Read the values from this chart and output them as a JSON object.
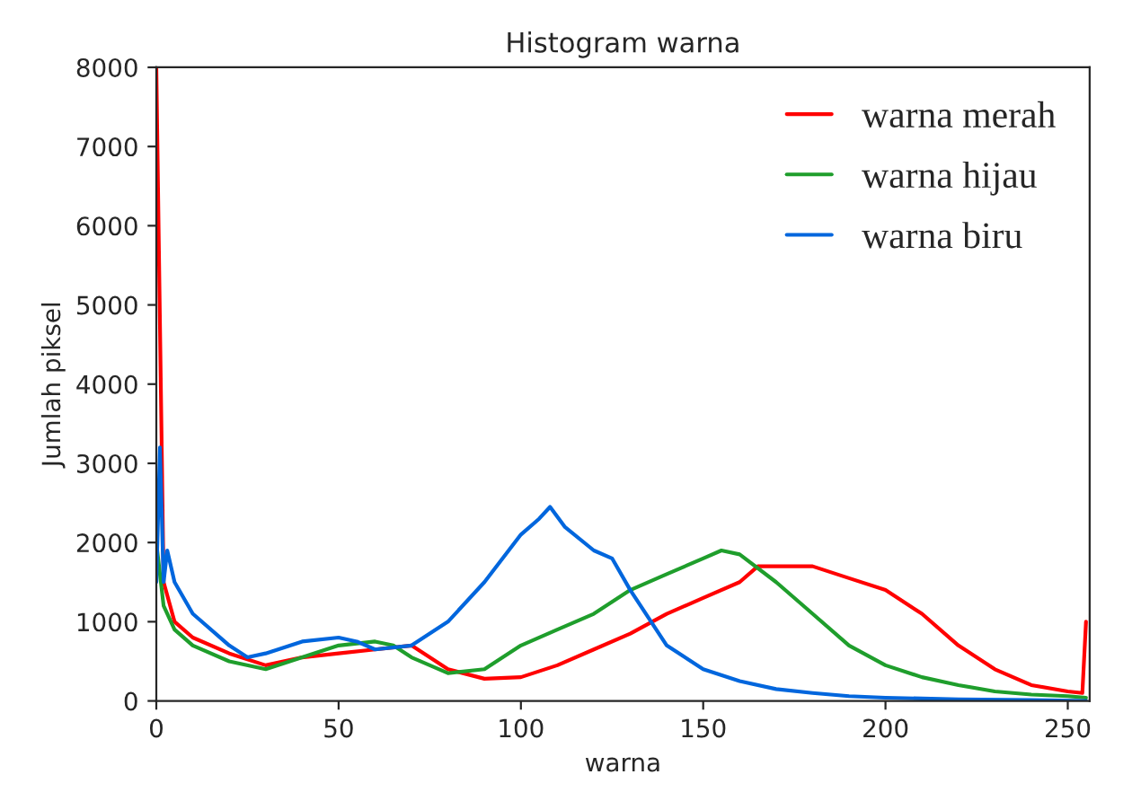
{
  "chart_data": {
    "type": "line",
    "title": "Histogram warna",
    "xlabel": "warna",
    "ylabel": "Jumlah piksel",
    "xlim": [
      0,
      256
    ],
    "ylim": [
      0,
      8000
    ],
    "xticks": [
      0,
      50,
      100,
      150,
      200,
      250
    ],
    "yticks": [
      0,
      1000,
      2000,
      3000,
      4000,
      5000,
      6000,
      7000,
      8000
    ],
    "grid": false,
    "legend": "top right",
    "series": [
      {
        "name": "warna merah",
        "color": "#ff0000",
        "x": [
          0,
          2,
          5,
          10,
          20,
          30,
          40,
          50,
          60,
          70,
          80,
          90,
          100,
          110,
          120,
          130,
          140,
          150,
          160,
          165,
          170,
          180,
          190,
          200,
          210,
          220,
          230,
          240,
          250,
          254,
          255
        ],
        "values": [
          8000,
          1500,
          1000,
          800,
          600,
          450,
          550,
          600,
          650,
          700,
          400,
          280,
          300,
          450,
          650,
          850,
          1100,
          1300,
          1500,
          1700,
          1700,
          1700,
          1550,
          1400,
          1100,
          700,
          400,
          200,
          120,
          100,
          1000
        ]
      },
      {
        "name": "warna hijau",
        "color": "#1f9e2c",
        "x": [
          0,
          2,
          5,
          10,
          20,
          30,
          40,
          50,
          60,
          65,
          70,
          80,
          90,
          100,
          110,
          120,
          130,
          140,
          150,
          155,
          160,
          170,
          180,
          190,
          200,
          210,
          220,
          230,
          240,
          250,
          255
        ],
        "values": [
          2000,
          1200,
          900,
          700,
          500,
          400,
          550,
          700,
          750,
          700,
          550,
          350,
          400,
          700,
          900,
          1100,
          1400,
          1600,
          1800,
          1900,
          1850,
          1500,
          1100,
          700,
          450,
          300,
          200,
          120,
          80,
          60,
          40
        ]
      },
      {
        "name": "warna biru",
        "color": "#0066dd",
        "x": [
          0,
          1,
          2,
          3,
          5,
          10,
          20,
          25,
          30,
          40,
          50,
          55,
          60,
          70,
          80,
          90,
          95,
          100,
          105,
          108,
          112,
          120,
          125,
          130,
          140,
          150,
          160,
          170,
          180,
          190,
          200,
          220,
          240,
          255
        ],
        "values": [
          1500,
          3200,
          1500,
          1900,
          1500,
          1100,
          700,
          550,
          600,
          750,
          800,
          750,
          650,
          700,
          1000,
          1500,
          1800,
          2100,
          2300,
          2450,
          2200,
          1900,
          1800,
          1400,
          700,
          400,
          250,
          150,
          100,
          60,
          40,
          20,
          10,
          0
        ]
      }
    ]
  }
}
